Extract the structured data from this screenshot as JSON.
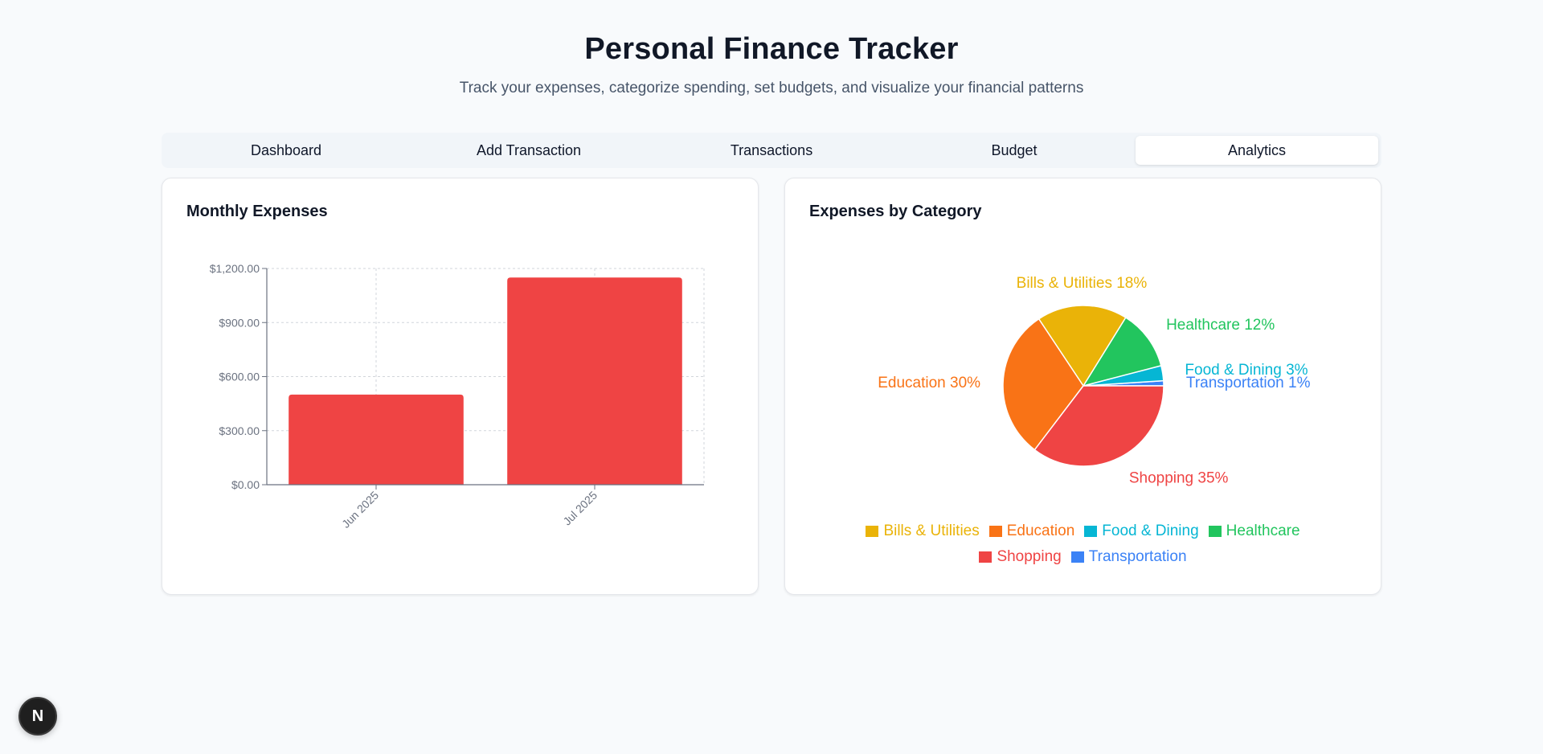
{
  "header": {
    "title": "Personal Finance Tracker",
    "subtitle": "Track your expenses, categorize spending, set budgets, and visualize your financial patterns"
  },
  "tabs": [
    {
      "label": "Dashboard",
      "active": false
    },
    {
      "label": "Add Transaction",
      "active": false
    },
    {
      "label": "Transactions",
      "active": false
    },
    {
      "label": "Budget",
      "active": false
    },
    {
      "label": "Analytics",
      "active": true
    }
  ],
  "monthly_card": {
    "title": "Monthly Expenses"
  },
  "category_card": {
    "title": "Expenses by Category"
  },
  "next_badge": {
    "label": "N"
  },
  "colors": {
    "bar": "#ef4444",
    "Bills & Utilities": "#eab308",
    "Education": "#f97316",
    "Food & Dining": "#06b6d4",
    "Healthcare": "#22c55e",
    "Shopping": "#ef4444",
    "Transportation": "#3b82f6"
  },
  "chart_data": [
    {
      "type": "bar",
      "title": "Monthly Expenses",
      "categories": [
        "Jun 2025",
        "Jul 2025"
      ],
      "values": [
        500,
        1150
      ],
      "ylim": [
        0,
        1200
      ],
      "yticks": [
        0,
        300,
        600,
        900,
        1200
      ],
      "ytick_labels": [
        "$0.00",
        "$300.00",
        "$600.00",
        "$900.00",
        "$1,200.00"
      ],
      "grid": true
    },
    {
      "type": "pie",
      "title": "Expenses by Category",
      "slices": [
        {
          "label": "Transportation",
          "percent": 1,
          "text": "Transportation 1%"
        },
        {
          "label": "Food & Dining",
          "percent": 3,
          "text": "Food & Dining 3%"
        },
        {
          "label": "Healthcare",
          "percent": 12,
          "text": "Healthcare 12%"
        },
        {
          "label": "Bills & Utilities",
          "percent": 18,
          "text": "Bills & Utilities 18%"
        },
        {
          "label": "Education",
          "percent": 30,
          "text": "Education 30%"
        },
        {
          "label": "Shopping",
          "percent": 35,
          "text": "Shopping 35%"
        }
      ],
      "legend": [
        "Bills & Utilities",
        "Education",
        "Food & Dining",
        "Healthcare",
        "Shopping",
        "Transportation"
      ],
      "legend_position": "bottom"
    }
  ]
}
